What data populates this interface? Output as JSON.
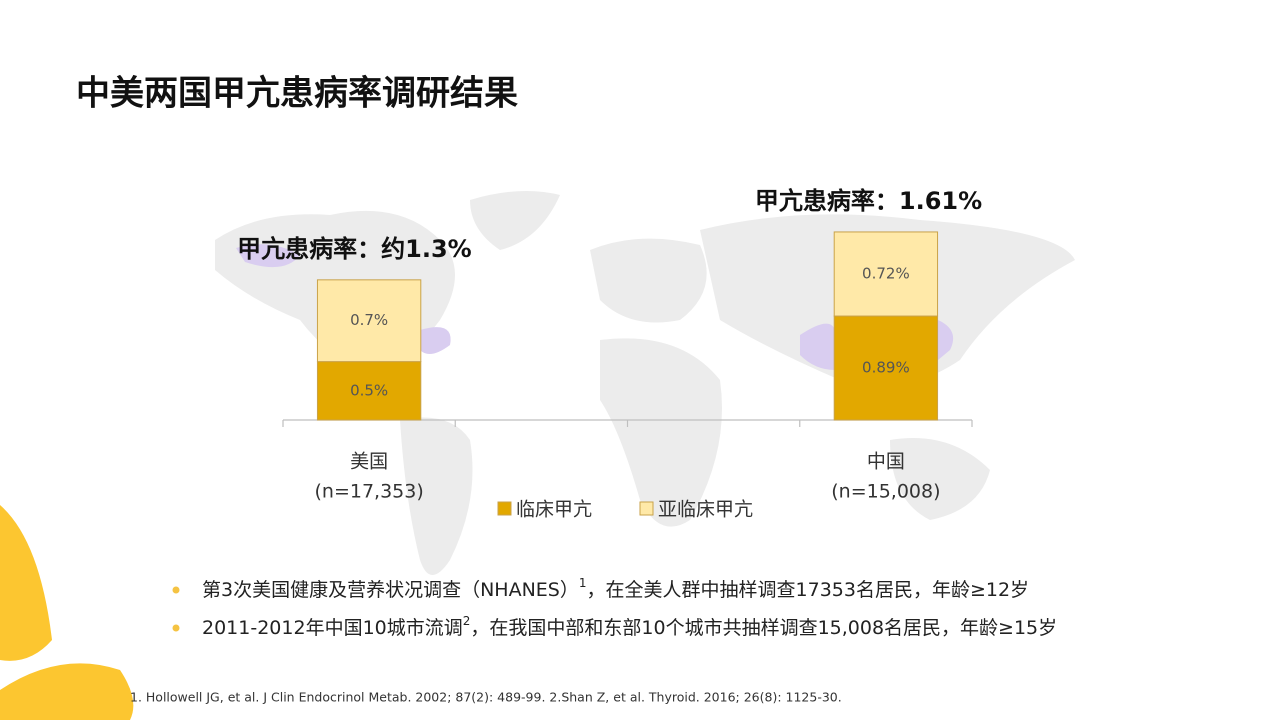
{
  "header": {
    "title": "中美两国甲亢患病率调研结果"
  },
  "chart_data": {
    "type": "stacked-bar",
    "categories": [
      "美国",
      null,
      null,
      "中国"
    ],
    "category_notes": [
      "(n=17,353)",
      null,
      null,
      "(n=15,008)"
    ],
    "series": [
      {
        "name": "临床甲亢",
        "color": "#e2a800",
        "values": [
          0.5,
          null,
          null,
          0.89
        ],
        "value_labels": [
          "0.5%",
          null,
          null,
          "0.89%"
        ]
      },
      {
        "name": "亚临床甲亢",
        "color": "#ffe9a8",
        "values": [
          0.7,
          null,
          null,
          0.72
        ],
        "value_labels": [
          "0.7%",
          null,
          null,
          "0.72%"
        ]
      }
    ],
    "annotations": [
      "甲亢患病率：约1.3%",
      null,
      null,
      "甲亢患病率：1.61%"
    ],
    "ylim": [
      0,
      2.5
    ]
  },
  "bullets": [
    {
      "parts": [
        "第3次美国健康及营养状况调查（NHANES）",
        "1",
        "，在全美人群中抽样调查17353名居民，年龄≥12岁"
      ]
    },
    {
      "parts": [
        "2011-2012年中国10城市流调",
        "2",
        "，在我国中部和东部10个城市共抽样调查15,008名居民，年龄≥15岁"
      ]
    }
  ],
  "footnote": "1. Hollowell JG, et al. J Clin Endocrinol Metab. 2002; 87(2): 489-99.  2.Shan Z, et al. Thyroid. 2016; 26(8): 1125-30."
}
